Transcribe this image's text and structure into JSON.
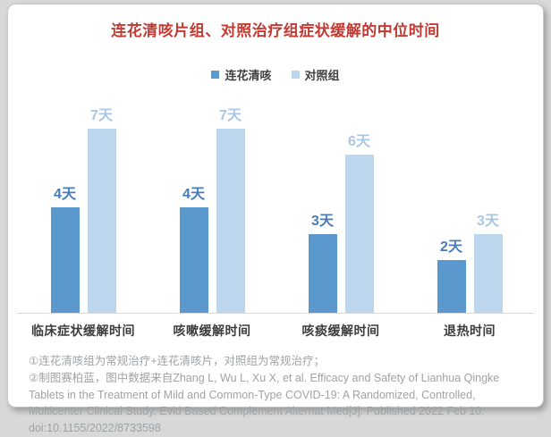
{
  "page": {
    "background_color": "#d8d8d8",
    "card_color": "#ffffff",
    "title_color": "#c23a32"
  },
  "chart_data": {
    "type": "bar",
    "title": "连花清咳片组、对照治疗组症状缓解的中位时间",
    "categories": [
      "临床症状缓解时间",
      "咳嗽缓解时间",
      "咳痰缓解时间",
      "退热时间"
    ],
    "series": [
      {
        "name": "连花清咳",
        "color": "#5b98ce",
        "label_color": "#4a7cb8",
        "values": [
          4,
          4,
          3,
          2
        ],
        "labels": [
          "4天",
          "4天",
          "3天",
          "2天"
        ]
      },
      {
        "name": "对照组",
        "color": "#bdd7ee",
        "label_color": "#a9c7e5",
        "values": [
          7,
          7,
          6,
          3
        ],
        "labels": [
          "7天",
          "7天",
          "6天",
          "3天"
        ]
      }
    ],
    "unit": "天",
    "ylim": [
      0,
      8
    ],
    "grid": false,
    "legend_position": "top",
    "axis_line_color": "#d9d9d9"
  },
  "footnotes": [
    "①连花清咳组为常规治疗+连花清咳片，对照组为常规治疗；",
    "②制图赛柏蓝，图中数据来自Zhang L, Wu L, Xu X, et al. Efficacy and Safety of Lianhua Qingke Tablets in the Treatment of Mild and Common-Type COVID-19: A Randomized, Controlled, Multicenter Clinical Study. Evid Based Complement Alternat Med[J]. Published 2022 Feb 10. doi:10.1155/2022/8733598"
  ]
}
